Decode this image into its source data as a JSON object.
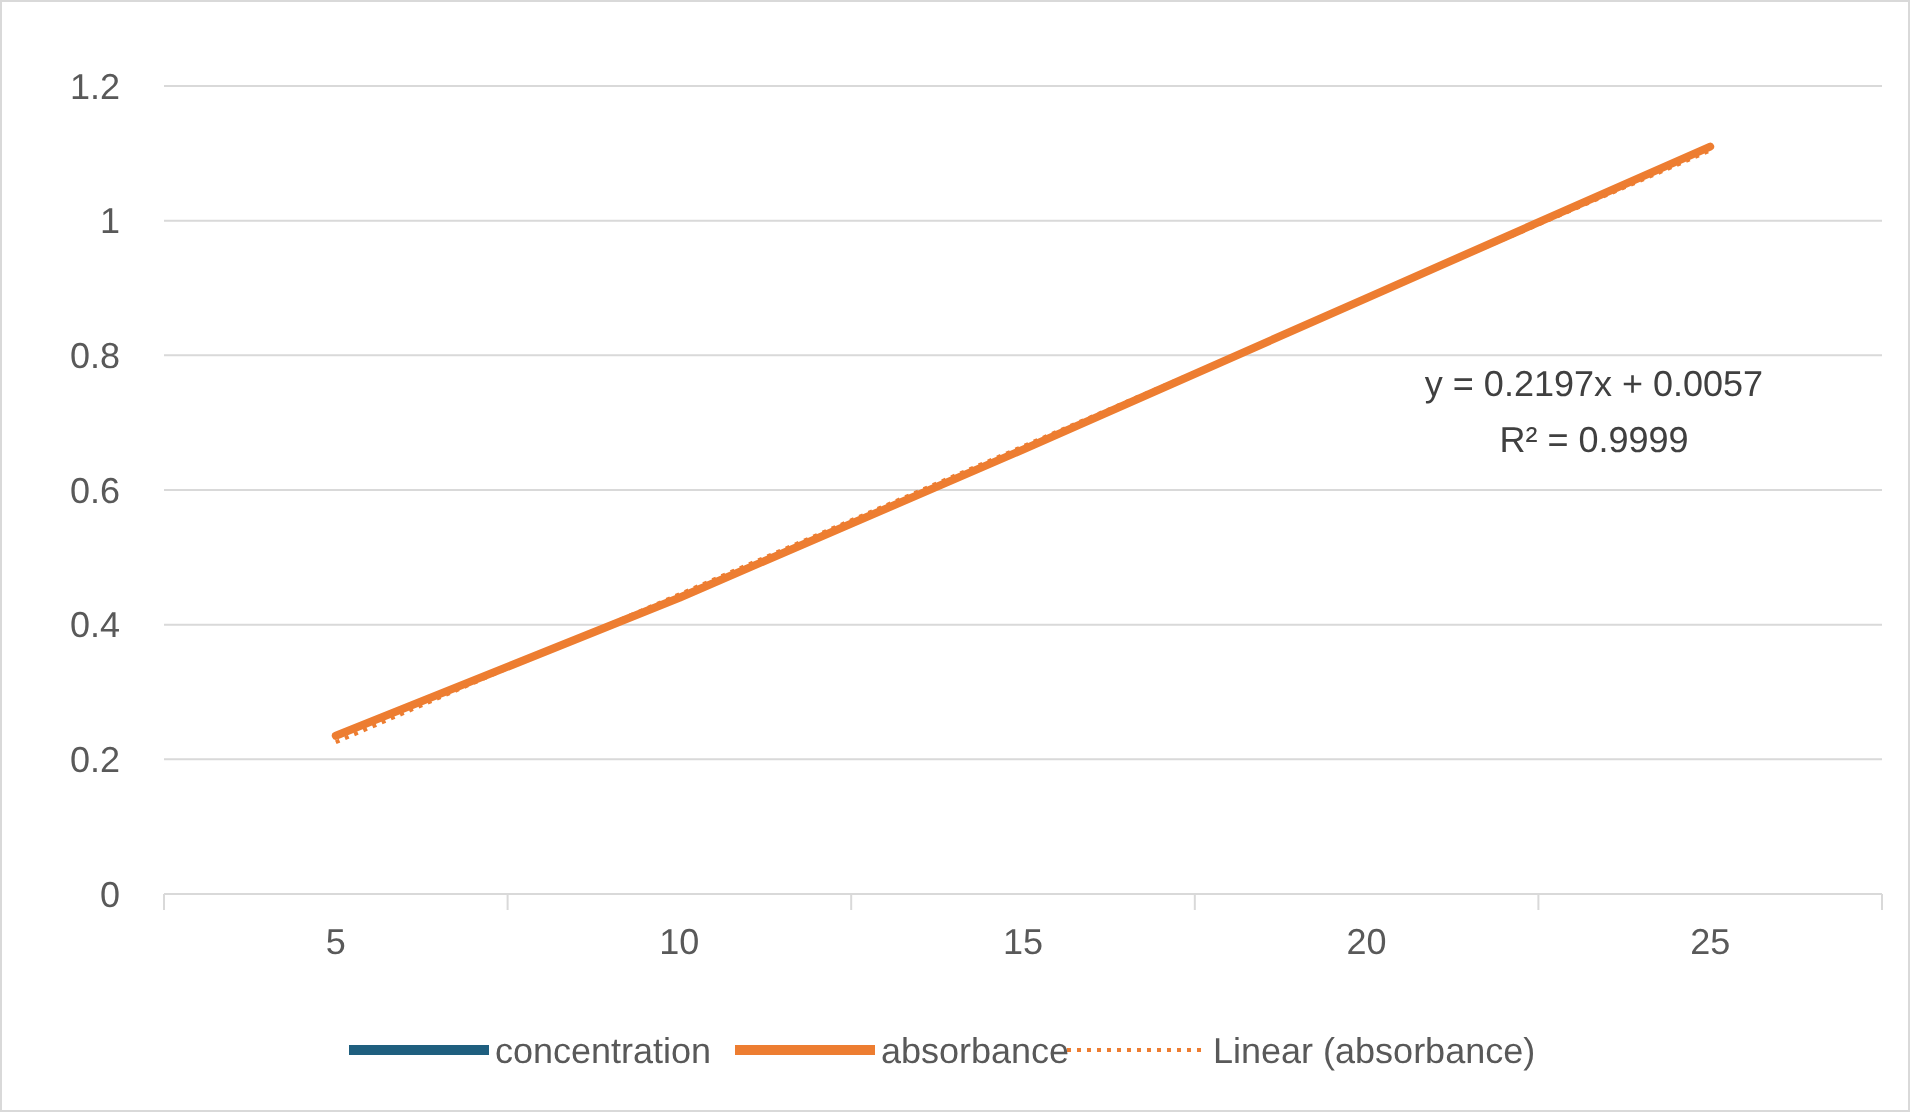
{
  "chart_data": {
    "type": "line",
    "categories": [
      "5",
      "10",
      "15",
      "20",
      "25"
    ],
    "series": [
      {
        "name": "concentration",
        "color": "#1f5f7f",
        "values": [
          null,
          null,
          null,
          null,
          null
        ]
      },
      {
        "name": "absorbance",
        "color": "#ed7d31",
        "values": [
          0.235,
          0.44,
          0.66,
          0.885,
          1.11
        ]
      },
      {
        "name": "Linear (absorbance)",
        "color": "#ed7d31",
        "line_style": "dotted",
        "values": [
          0.2254,
          0.4451,
          0.6648,
          0.8845,
          1.1042
        ]
      }
    ],
    "ylim": [
      0,
      1.2
    ],
    "yticks": [
      0,
      0.2,
      0.4,
      0.6,
      0.8,
      1,
      1.2
    ],
    "grid": "y",
    "legend": "bottom",
    "marker": "none",
    "annotations": [
      "y = 0.2197x + 0.0057",
      "R² = 0.9999"
    ]
  }
}
